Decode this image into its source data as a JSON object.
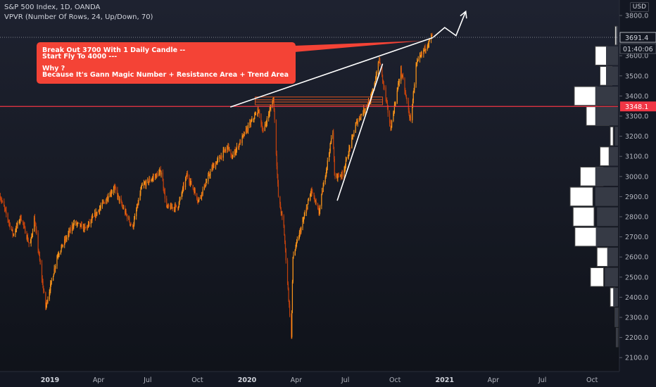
{
  "header": {
    "symbol": "S&P 500 Index, 1D, OANDA",
    "indicator": "VPVR (Number Of Rows, 24, Up/Down, 70)",
    "currency": "USD"
  },
  "annotation": {
    "line1": "Break Out 3700 With 1 Daily Candle --",
    "line2": "Start Fly To 4000 ---",
    "line3": "Why ?",
    "line4": "Because It's Gann Magic Number + Resistance Area + Trend Area"
  },
  "price_labels": {
    "last_price": "3691.4",
    "countdown": "01:40:06",
    "level_price": "3348.1"
  },
  "colors": {
    "background": "#131722",
    "candle": "#f7931a",
    "candle_dark": "#c2410c",
    "level_line": "#f23645",
    "annotation_bg": "#f44336",
    "volume_bar": "#ffffff",
    "volume_shadow": "#363a45",
    "trend_line": "#ffffff"
  },
  "chart_data": {
    "type": "line",
    "title": "S&P 500 Index, 1D, OANDA",
    "xlabel": "",
    "ylabel": "",
    "y_range": [
      2100,
      3800
    ],
    "grid": false,
    "y_ticks": [
      "3800.0",
      "3700.0",
      "3600.0",
      "3500.0",
      "3400.0",
      "3300.0",
      "3200.0",
      "3100.0",
      "3000.0",
      "2900.0",
      "2800.0",
      "2700.0",
      "2600.0",
      "2500.0",
      "2400.0",
      "2300.0",
      "2200.0",
      "2100.0"
    ],
    "x_ticks": [
      "2019",
      "Apr",
      "Jul",
      "Oct",
      "2020",
      "Apr",
      "Jul",
      "Oct",
      "2021",
      "Apr",
      "Jul",
      "Oct"
    ],
    "price_path": [
      {
        "date": "2018-10-01",
        "price": 2900
      },
      {
        "date": "2018-10-25",
        "price": 2710
      },
      {
        "date": "2018-11-08",
        "price": 2800
      },
      {
        "date": "2018-11-25",
        "price": 2650
      },
      {
        "date": "2018-12-03",
        "price": 2790
      },
      {
        "date": "2018-12-24",
        "price": 2350
      },
      {
        "date": "2019-01-15",
        "price": 2610
      },
      {
        "date": "2019-02-15",
        "price": 2770
      },
      {
        "date": "2019-03-08",
        "price": 2740
      },
      {
        "date": "2019-04-30",
        "price": 2945
      },
      {
        "date": "2019-05-15",
        "price": 2850
      },
      {
        "date": "2019-06-03",
        "price": 2745
      },
      {
        "date": "2019-06-20",
        "price": 2950
      },
      {
        "date": "2019-07-26",
        "price": 3025
      },
      {
        "date": "2019-08-05",
        "price": 2845
      },
      {
        "date": "2019-08-26",
        "price": 2850
      },
      {
        "date": "2019-09-12",
        "price": 3010
      },
      {
        "date": "2019-10-03",
        "price": 2880
      },
      {
        "date": "2019-10-28",
        "price": 3040
      },
      {
        "date": "2019-11-27",
        "price": 3150
      },
      {
        "date": "2019-12-03",
        "price": 3090
      },
      {
        "date": "2019-12-31",
        "price": 3230
      },
      {
        "date": "2020-01-22",
        "price": 3330
      },
      {
        "date": "2020-01-31",
        "price": 3220
      },
      {
        "date": "2020-02-19",
        "price": 3390
      },
      {
        "date": "2020-02-28",
        "price": 2900
      },
      {
        "date": "2020-03-09",
        "price": 2750
      },
      {
        "date": "2020-03-23",
        "price": 2200
      },
      {
        "date": "2020-03-26",
        "price": 2600
      },
      {
        "date": "2020-04-15",
        "price": 2790
      },
      {
        "date": "2020-04-29",
        "price": 2930
      },
      {
        "date": "2020-05-13",
        "price": 2820
      },
      {
        "date": "2020-06-08",
        "price": 3230
      },
      {
        "date": "2020-06-11",
        "price": 3000
      },
      {
        "date": "2020-06-26",
        "price": 3010
      },
      {
        "date": "2020-07-22",
        "price": 3270
      },
      {
        "date": "2020-08-18",
        "price": 3390
      },
      {
        "date": "2020-09-02",
        "price": 3580
      },
      {
        "date": "2020-09-23",
        "price": 3240
      },
      {
        "date": "2020-10-12",
        "price": 3530
      },
      {
        "date": "2020-10-30",
        "price": 3270
      },
      {
        "date": "2020-11-09",
        "price": 3550
      },
      {
        "date": "2020-11-24",
        "price": 3630
      },
      {
        "date": "2020-12-09",
        "price": 3700
      }
    ],
    "horizontal_level": 3348.1,
    "resistance_zone": {
      "from_date": "2020-01-20",
      "to_date": "2020-09-08",
      "low": 3370,
      "high": 3395
    },
    "trend_lines": [
      {
        "from": {
          "date": "2019-12-01",
          "price": 3345
        },
        "to": {
          "date": "2020-12-10",
          "price": 3690
        }
      },
      {
        "from": {
          "date": "2020-06-16",
          "price": 2880
        },
        "to": {
          "date": "2020-09-08",
          "price": 3560
        }
      }
    ],
    "projection_arrow": [
      {
        "date": "2020-12-10",
        "price": 3690
      },
      {
        "date": "2021-01-01",
        "price": 3740
      },
      {
        "date": "2021-01-22",
        "price": 3700
      },
      {
        "date": "2021-02-09",
        "price": 3820
      }
    ],
    "volume_profile": [
      {
        "price": 2200,
        "up": 0,
        "down": 3
      },
      {
        "price": 2300,
        "up": 0,
        "down": 5
      },
      {
        "price": 2400,
        "up": 5,
        "down": 8
      },
      {
        "price": 2500,
        "up": 24,
        "down": 22
      },
      {
        "price": 2600,
        "up": 17,
        "down": 18
      },
      {
        "price": 2700,
        "up": 35,
        "down": 37
      },
      {
        "price": 2800,
        "up": 40,
        "down": 35
      },
      {
        "price": 2900,
        "up": 42,
        "down": 38
      },
      {
        "price": 3000,
        "up": 25,
        "down": 38
      },
      {
        "price": 3100,
        "up": 15,
        "down": 15
      },
      {
        "price": 3200,
        "up": 8,
        "down": 5
      },
      {
        "price": 3300,
        "up": 15,
        "down": 38
      },
      {
        "price": 3400,
        "up": 35,
        "down": 38
      },
      {
        "price": 3500,
        "up": 10,
        "down": 20
      },
      {
        "price": 3600,
        "up": 18,
        "down": 20
      },
      {
        "price": 3700,
        "up": 2,
        "down": 3
      }
    ]
  }
}
